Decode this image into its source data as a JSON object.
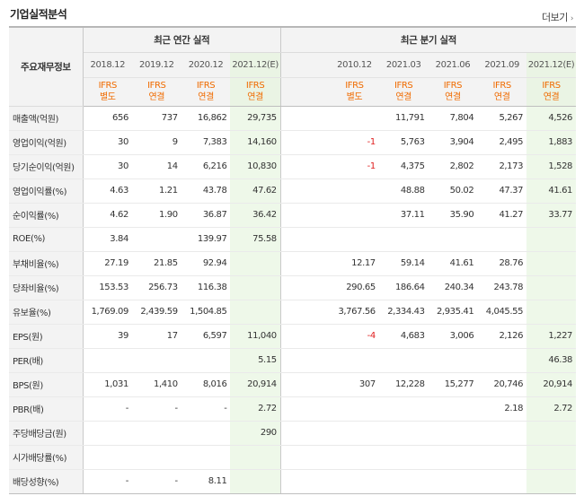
{
  "header": {
    "title": "기업실적분석",
    "more_label": "더보기",
    "more_icon": "chevron-right-icon"
  },
  "table": {
    "row_label_header": "주요재무정보",
    "groups": [
      {
        "label": "최근 연간 실적"
      },
      {
        "label": "최근 분기 실적"
      }
    ],
    "periods": [
      {
        "date": "2018.12",
        "std": [
          "IFRS",
          "별도"
        ]
      },
      {
        "date": "2019.12",
        "std": [
          "IFRS",
          "연결"
        ]
      },
      {
        "date": "2020.12",
        "std": [
          "IFRS",
          "연결"
        ]
      },
      {
        "date": "2021.12(E)",
        "std": [
          "IFRS",
          "연결"
        ],
        "estimate": true
      },
      {
        "date": "",
        "std": [
          "",
          ""
        ]
      },
      {
        "date": "2010.12",
        "std": [
          "IFRS",
          "별도"
        ]
      },
      {
        "date": "2021.03",
        "std": [
          "IFRS",
          "연결"
        ]
      },
      {
        "date": "2021.06",
        "std": [
          "IFRS",
          "연결"
        ]
      },
      {
        "date": "2021.09",
        "std": [
          "IFRS",
          "연결"
        ]
      },
      {
        "date": "2021.12(E)",
        "std": [
          "IFRS",
          "연결"
        ],
        "estimate": true
      }
    ],
    "rows": [
      {
        "label": "매출액(억원)",
        "values": [
          "656",
          "737",
          "16,862",
          "29,735",
          "",
          "",
          "11,791",
          "7,804",
          "5,267",
          "4,526"
        ]
      },
      {
        "label": "영업이익(억원)",
        "values": [
          "30",
          "9",
          "7,383",
          "14,160",
          "",
          "-1",
          "5,763",
          "3,904",
          "2,495",
          "1,883"
        ]
      },
      {
        "label": "당기순이익(억원)",
        "values": [
          "30",
          "14",
          "6,216",
          "10,830",
          "",
          "-1",
          "4,375",
          "2,802",
          "2,173",
          "1,528"
        ]
      },
      {
        "label": "영업이익률(%)",
        "values": [
          "4.63",
          "1.21",
          "43.78",
          "47.62",
          "",
          "",
          "48.88",
          "50.02",
          "47.37",
          "41.61"
        ]
      },
      {
        "label": "순이익률(%)",
        "values": [
          "4.62",
          "1.90",
          "36.87",
          "36.42",
          "",
          "",
          "37.11",
          "35.90",
          "41.27",
          "33.77"
        ]
      },
      {
        "label": "ROE(%)",
        "values": [
          "3.84",
          "",
          "139.97",
          "75.58",
          "",
          "",
          "",
          "",
          "",
          ""
        ]
      },
      {
        "label": "부채비율(%)",
        "values": [
          "27.19",
          "21.85",
          "92.94",
          "",
          "",
          "12.17",
          "59.14",
          "41.61",
          "28.76",
          ""
        ]
      },
      {
        "label": "당좌비율(%)",
        "values": [
          "153.53",
          "256.73",
          "116.38",
          "",
          "",
          "290.65",
          "186.64",
          "240.34",
          "243.78",
          ""
        ]
      },
      {
        "label": "유보율(%)",
        "values": [
          "1,769.09",
          "2,439.59",
          "1,504.85",
          "",
          "",
          "3,767.56",
          "2,334.43",
          "2,935.41",
          "4,045.55",
          ""
        ]
      },
      {
        "label": "EPS(원)",
        "values": [
          "39",
          "17",
          "6,597",
          "11,040",
          "",
          "-4",
          "4,683",
          "3,006",
          "2,126",
          "1,227"
        ]
      },
      {
        "label": "PER(배)",
        "values": [
          "",
          "",
          "",
          "5.15",
          "",
          "",
          "",
          "",
          "",
          "46.38"
        ]
      },
      {
        "label": "BPS(원)",
        "values": [
          "1,031",
          "1,410",
          "8,016",
          "20,914",
          "",
          "307",
          "12,228",
          "15,277",
          "20,746",
          "20,914"
        ]
      },
      {
        "label": "PBR(배)",
        "values": [
          "-",
          "-",
          "-",
          "2.72",
          "",
          "",
          "",
          "",
          "2.18",
          "2.72"
        ]
      },
      {
        "label": "주당배당금(원)",
        "values": [
          "",
          "",
          "",
          "290",
          "",
          "",
          "",
          "",
          "",
          ""
        ]
      },
      {
        "label": "시가배당률(%)",
        "values": [
          "",
          "",
          "",
          "",
          "",
          "",
          "",
          "",
          "",
          ""
        ]
      },
      {
        "label": "배당성향(%)",
        "values": [
          "-",
          "-",
          "8.11",
          "",
          "",
          "",
          "",
          "",
          "",
          ""
        ]
      }
    ]
  },
  "colors": {
    "ifrs": "#f06b00",
    "negative": "#e02020",
    "estimate_bg": "#eef8e9",
    "header_bg": "#f3f3f3"
  }
}
